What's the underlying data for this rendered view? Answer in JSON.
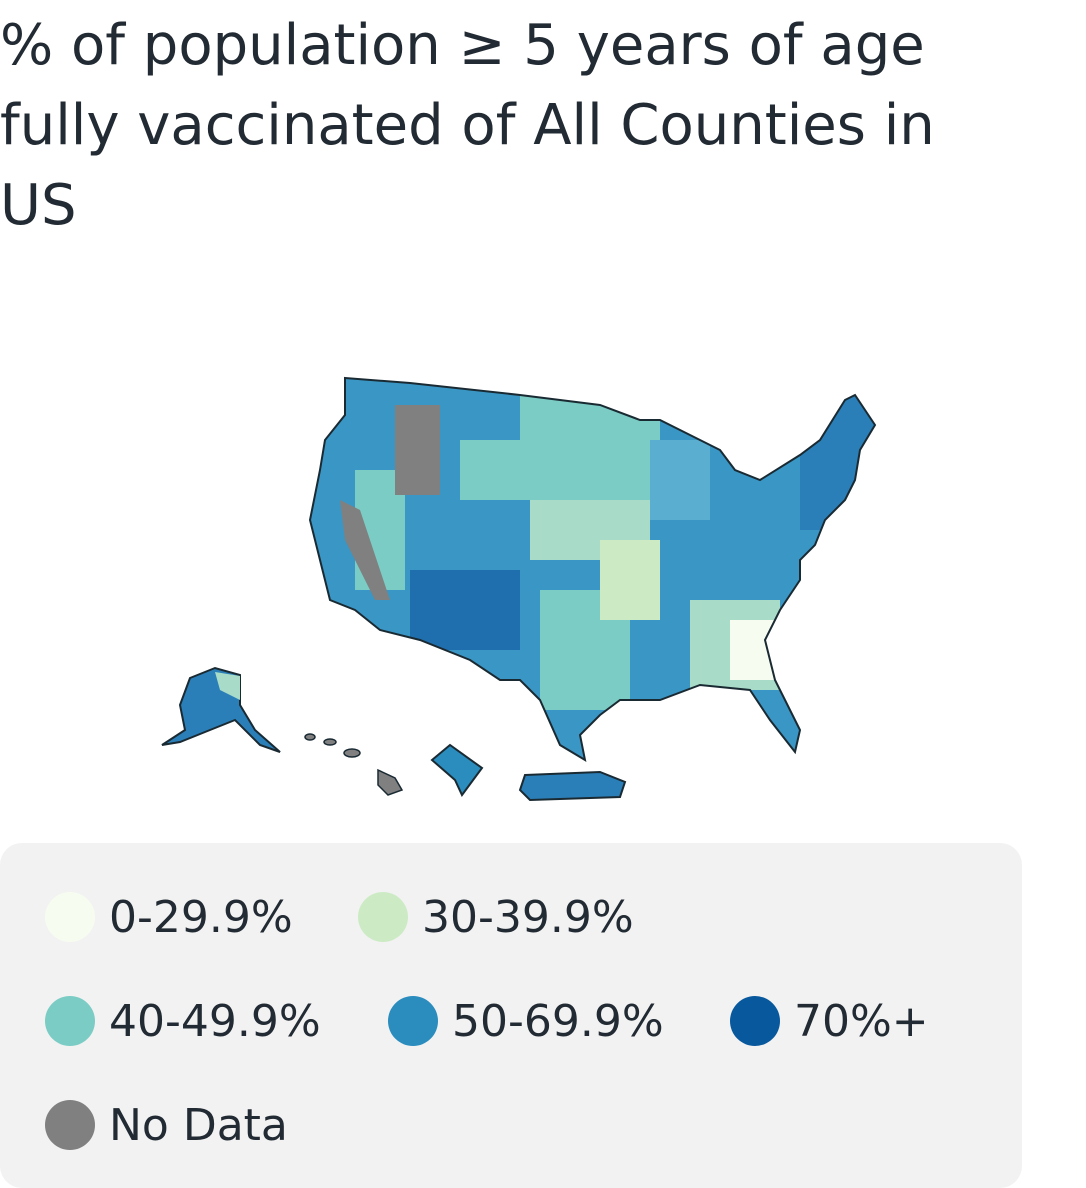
{
  "title": "% of population ≥ 5 years of age fully vaccinated of All Counties in US",
  "legend": {
    "items": [
      {
        "label": "0-29.9%",
        "color": "#f7fcf0"
      },
      {
        "label": "30-39.9%",
        "color": "#ccebc5"
      },
      {
        "label": "40-49.9%",
        "color": "#7bccc4"
      },
      {
        "label": "50-69.9%",
        "color": "#2b8cbe"
      },
      {
        "label": "70%+",
        "color": "#08589e"
      },
      {
        "label": "No Data",
        "color": "#808080"
      }
    ]
  }
}
